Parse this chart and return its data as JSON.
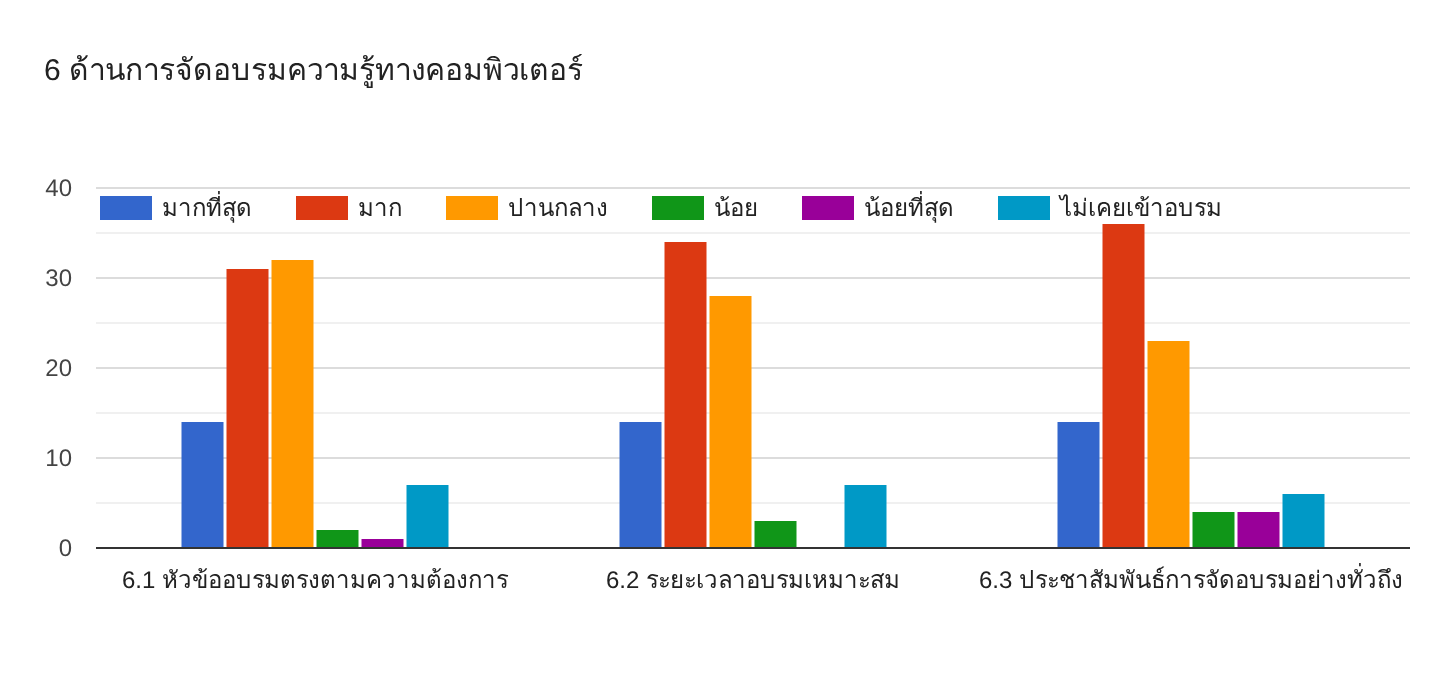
{
  "chart_data": {
    "type": "bar",
    "title": "6 ด้านการจัดอบรมความรู้ทางคอมพิวเตอร์",
    "categories": [
      "6.1 หัวข้ออบรมตรงตามความต้องการ",
      "6.2 ระยะเวลาอบรมเหมาะสม",
      "6.3 ประชาสัมพันธ์การจัดอบรมอย่างทั่วถึง"
    ],
    "series": [
      {
        "name": "มากที่สุด",
        "color": "#3366cc",
        "values": [
          14,
          14,
          14
        ]
      },
      {
        "name": "มาก",
        "color": "#dc3912",
        "values": [
          31,
          34,
          36
        ]
      },
      {
        "name": "ปานกลาง",
        "color": "#ff9900",
        "values": [
          32,
          28,
          23
        ]
      },
      {
        "name": "น้อย",
        "color": "#109618",
        "values": [
          2,
          3,
          4
        ]
      },
      {
        "name": "น้อยที่สุด",
        "color": "#990099",
        "values": [
          1,
          0,
          4
        ]
      },
      {
        "name": "ไม่เคยเข้าอบรม",
        "color": "#0099c6",
        "values": [
          7,
          7,
          6
        ]
      }
    ],
    "ylim": [
      0,
      40
    ],
    "yticks": [
      0,
      {
        "value": 5,
        "label": null
      },
      10,
      {
        "value": 15,
        "label": null
      },
      20,
      {
        "value": 25,
        "label": null
      },
      30,
      {
        "value": 35,
        "label": null
      },
      40
    ],
    "grid": "y",
    "legend": "top"
  }
}
